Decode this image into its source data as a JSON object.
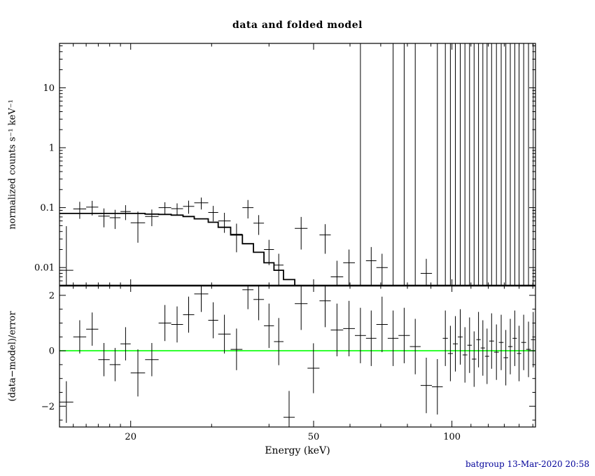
{
  "footer": "batgroup 13-Mar-2020 20:58",
  "colors": {
    "frame": "#000000",
    "data": "#000000",
    "model": "#000000",
    "zero_line": "#00ff00",
    "footer_text": "#000099",
    "background": "#ffffff"
  },
  "chart_data": {
    "type": "scatter",
    "subtype": "xspec-counts-spectrum-with-residuals",
    "title": "data and folded model",
    "xlabel": "Energy (keV)",
    "ylabel_top": "normalized counts s⁻¹ keV⁻¹",
    "ylabel_bottom": "(data−model)/error",
    "x_scale": "log",
    "x_range": [
      14.0,
      152.0
    ],
    "top_y_scale": "log",
    "top_y_range": [
      0.005,
      55
    ],
    "bottom_y_scale": "linear",
    "bottom_y_range": [
      -2.75,
      2.35
    ],
    "x_ticks": [
      20,
      50,
      100
    ],
    "x_minor_ticks": [
      15,
      16,
      17,
      18,
      19,
      30,
      40,
      60,
      70,
      80,
      90,
      110,
      120,
      130,
      140,
      150
    ],
    "top_y_ticks": [
      0.01,
      0.1,
      1,
      10
    ],
    "top_y_tick_labels": [
      "0.01",
      "0.1",
      "1",
      "10"
    ],
    "top_y_minor_ticks": [
      0.006,
      0.007,
      0.008,
      0.009,
      0.02,
      0.03,
      0.04,
      0.05,
      0.06,
      0.07,
      0.08,
      0.09,
      0.2,
      0.3,
      0.4,
      0.5,
      0.6,
      0.7,
      0.8,
      0.9,
      2,
      3,
      4,
      5,
      6,
      7,
      8,
      9,
      20,
      30,
      40,
      50
    ],
    "bottom_y_ticks": [
      -2,
      0,
      2
    ],
    "bottom_y_minor_ticks": [
      -2.5,
      -1.5,
      -1,
      -0.5,
      0.5,
      1,
      1.5
    ],
    "legend": "none",
    "grid": false,
    "bins_format": [
      "e_lo_keV",
      "e_hi_keV",
      "counts",
      "counts_err",
      "model_counts",
      "residual_sigma",
      "residual_err"
    ],
    "bins": [
      [
        14.0,
        15.0,
        0.009,
        0.04,
        0.08,
        -1.85,
        0.75
      ],
      [
        15.0,
        16.0,
        0.095,
        0.03,
        0.08,
        0.5,
        0.6
      ],
      [
        16.0,
        17.0,
        0.102,
        0.028,
        0.08,
        0.78,
        0.6
      ],
      [
        17.0,
        18.0,
        0.072,
        0.025,
        0.08,
        -0.32,
        0.6
      ],
      [
        18.0,
        19.0,
        0.068,
        0.024,
        0.08,
        -0.5,
        0.6
      ],
      [
        19.0,
        20.0,
        0.086,
        0.024,
        0.08,
        0.25,
        0.6
      ],
      [
        20.0,
        21.5,
        0.056,
        0.03,
        0.08,
        -0.8,
        0.85
      ],
      [
        21.5,
        23.0,
        0.071,
        0.022,
        0.078,
        -0.32,
        0.6
      ],
      [
        23.0,
        24.5,
        0.1,
        0.023,
        0.077,
        1.0,
        0.65
      ],
      [
        24.5,
        26.0,
        0.096,
        0.022,
        0.075,
        0.95,
        0.65
      ],
      [
        26.0,
        27.5,
        0.105,
        0.026,
        0.071,
        1.3,
        0.65
      ],
      [
        27.5,
        29.5,
        0.12,
        0.027,
        0.065,
        2.05,
        0.65
      ],
      [
        29.5,
        31.0,
        0.083,
        0.024,
        0.057,
        1.1,
        0.65
      ],
      [
        31.0,
        33.0,
        0.06,
        0.022,
        0.047,
        0.6,
        0.7
      ],
      [
        33.0,
        35.0,
        0.036,
        0.018,
        0.035,
        0.05,
        0.75
      ],
      [
        35.0,
        37.0,
        0.1,
        0.034,
        0.025,
        2.2,
        0.7
      ],
      [
        37.0,
        39.0,
        0.055,
        0.02,
        0.018,
        1.85,
        0.75
      ],
      [
        39.0,
        41.0,
        0.02,
        0.009,
        0.012,
        0.9,
        0.8
      ],
      [
        41.0,
        43.0,
        0.011,
        0.006,
        0.009,
        0.33,
        0.85
      ],
      [
        43.0,
        45.5,
        0.0025,
        0.0016,
        0.0063,
        -2.4,
        0.95
      ],
      [
        45.5,
        48.5,
        0.045,
        0.025,
        0.0045,
        1.7,
        0.95
      ],
      [
        48.5,
        51.5,
        0.0012,
        0.0032,
        0.0036,
        -0.63,
        0.9
      ],
      [
        51.5,
        54.5,
        0.035,
        0.018,
        0.0032,
        1.8,
        0.95
      ],
      [
        54.5,
        58.0,
        0.007,
        0.006,
        0.0028,
        0.75,
        0.95
      ],
      [
        58.0,
        61.5,
        0.012,
        0.008,
        0.0024,
        0.8,
        1.0
      ],
      [
        61.5,
        65.0,
        null,
        null,
        null,
        0.55,
        1.0
      ],
      [
        65.0,
        68.5,
        0.013,
        0.009,
        null,
        0.45,
        1.0
      ],
      [
        68.5,
        72.5,
        0.01,
        0.007,
        null,
        0.95,
        1.0
      ],
      [
        72.5,
        76.5,
        null,
        null,
        null,
        0.45,
        1.0
      ],
      [
        76.5,
        81.0,
        null,
        null,
        null,
        0.55,
        1.0
      ],
      [
        81.0,
        85.5,
        null,
        null,
        null,
        0.15,
        1.0
      ],
      [
        85.5,
        90.5,
        0.008,
        0.006,
        null,
        -1.25,
        1.0
      ],
      [
        90.5,
        95.5,
        null,
        null,
        null,
        -1.3,
        1.0
      ],
      [
        95.5,
        98.0,
        null,
        null,
        null,
        0.45,
        1.0
      ],
      [
        98.0,
        100.5,
        null,
        null,
        null,
        -0.1,
        1.0
      ],
      [
        100.5,
        103.0,
        null,
        null,
        null,
        0.25,
        1.0
      ],
      [
        103.0,
        105.5,
        null,
        null,
        null,
        0.5,
        1.0
      ],
      [
        105.5,
        108.0,
        null,
        null,
        null,
        -0.15,
        1.0
      ],
      [
        108.0,
        110.5,
        null,
        null,
        null,
        0.2,
        1.0
      ],
      [
        110.5,
        113.0,
        null,
        null,
        null,
        -0.3,
        1.0
      ],
      [
        113.0,
        115.5,
        null,
        null,
        null,
        0.4,
        1.0
      ],
      [
        115.5,
        118.0,
        null,
        null,
        null,
        0.1,
        1.0
      ],
      [
        118.0,
        120.5,
        null,
        null,
        null,
        -0.2,
        1.0
      ],
      [
        120.5,
        123.5,
        null,
        null,
        null,
        0.35,
        1.0
      ],
      [
        123.5,
        126.5,
        null,
        null,
        null,
        -0.05,
        1.0
      ],
      [
        126.5,
        129.5,
        null,
        null,
        null,
        0.3,
        1.0
      ],
      [
        129.5,
        132.5,
        null,
        null,
        null,
        -0.25,
        1.0
      ],
      [
        132.5,
        135.5,
        null,
        null,
        null,
        0.15,
        1.0
      ],
      [
        135.5,
        138.5,
        null,
        null,
        null,
        0.45,
        1.0
      ],
      [
        138.5,
        141.5,
        null,
        null,
        null,
        -0.1,
        1.0
      ],
      [
        141.5,
        145.0,
        null,
        null,
        null,
        0.3,
        1.0
      ],
      [
        145.0,
        148.5,
        null,
        null,
        null,
        0.05,
        1.0
      ],
      [
        148.5,
        152.0,
        null,
        null,
        null,
        0.4,
        1.0
      ]
    ]
  }
}
